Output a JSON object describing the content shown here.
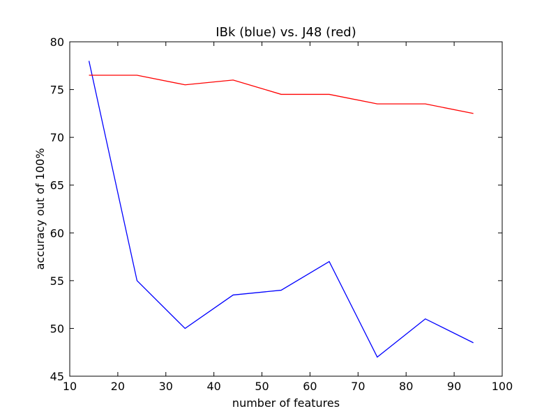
{
  "chart_data": {
    "type": "line",
    "title": "IBk (blue) vs. J48 (red)",
    "xlabel": "number of features",
    "ylabel": "accuracy out of 100%",
    "xlim": [
      10,
      100
    ],
    "ylim": [
      45,
      80
    ],
    "xticks": [
      10,
      20,
      30,
      40,
      50,
      60,
      70,
      80,
      90,
      100
    ],
    "yticks": [
      45,
      50,
      55,
      60,
      65,
      70,
      75,
      80
    ],
    "grid": false,
    "legend": "none",
    "x": [
      14,
      24,
      34,
      44,
      54,
      64,
      74,
      84,
      94
    ],
    "series": [
      {
        "color": "#0000ff",
        "values": [
          78,
          55,
          50,
          53.5,
          54,
          57,
          47,
          51,
          48.5
        ]
      },
      {
        "color": "#ff0000",
        "values": [
          76.5,
          76.5,
          75.5,
          76,
          74.5,
          74.5,
          73.5,
          73.5,
          72.5
        ]
      }
    ]
  }
}
